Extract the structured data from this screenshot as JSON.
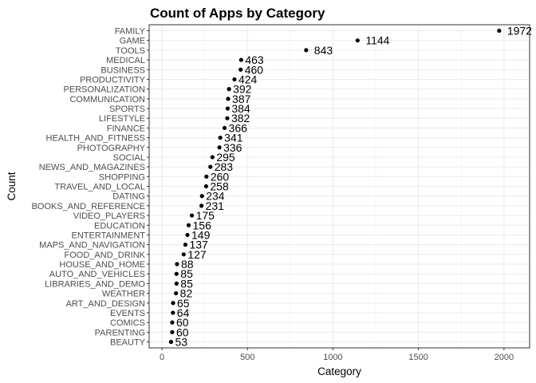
{
  "chart_data": {
    "type": "scatter",
    "title": "Count of Apps by Category",
    "xlabel": "Category",
    "ylabel": "Count",
    "xlim": [
      -75,
      2150
    ],
    "xticks": [
      0,
      500,
      1000,
      1500,
      2000
    ],
    "xtick_labels": [
      "0",
      "500",
      "1000",
      "1500",
      "2000"
    ],
    "grid": true,
    "legend": "none",
    "point_color": "#000000",
    "categories": [
      "FAMILY",
      "GAME",
      "TOOLS",
      "MEDICAL",
      "BUSINESS",
      "PRODUCTIVITY",
      "PERSONALIZATION",
      "COMMUNICATION",
      "SPORTS",
      "LIFESTYLE",
      "FINANCE",
      "HEALTH_AND_FITNESS",
      "PHOTOGRAPHY",
      "SOCIAL",
      "NEWS_AND_MAGAZINES",
      "SHOPPING",
      "TRAVEL_AND_LOCAL",
      "DATING",
      "BOOKS_AND_REFERENCE",
      "VIDEO_PLAYERS",
      "EDUCATION",
      "ENTERTAINMENT",
      "MAPS_AND_NAVIGATION",
      "FOOD_AND_DRINK",
      "HOUSE_AND_HOME",
      "AUTO_AND_VEHICLES",
      "LIBRARIES_AND_DEMO",
      "WEATHER",
      "ART_AND_DESIGN",
      "EVENTS",
      "COMICS",
      "PARENTING",
      "BEAUTY"
    ],
    "values": [
      1972,
      1144,
      843,
      463,
      460,
      424,
      392,
      387,
      384,
      382,
      366,
      341,
      336,
      295,
      283,
      260,
      258,
      234,
      231,
      175,
      156,
      149,
      137,
      127,
      88,
      85,
      85,
      82,
      65,
      64,
      60,
      60,
      53
    ],
    "value_labels": [
      "1972",
      "1144",
      "843",
      "463",
      "460",
      "424",
      "392",
      "387",
      "384",
      "382",
      "366",
      "341",
      "336",
      "295",
      "283",
      "260",
      "258",
      "234",
      "231",
      "175",
      "156",
      "149",
      "137",
      "127",
      "88",
      "85",
      "85",
      "82",
      "65",
      "64",
      "60",
      "60",
      "53"
    ]
  }
}
